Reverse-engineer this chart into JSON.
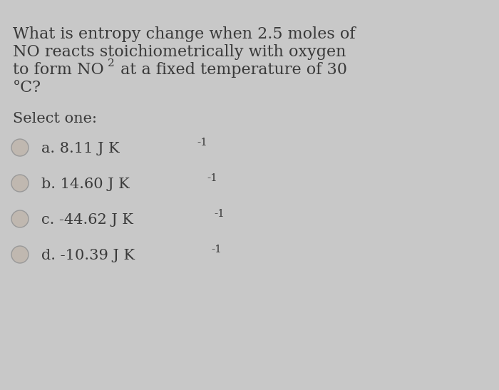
{
  "background_color": "#c8c8c8",
  "question_line1": "What is entropy change when 2.5 moles of",
  "question_line2": "NO reacts stoichiometrically with oxygen",
  "question_line3_pre": "to form NO",
  "question_line3_sub": "2",
  "question_line3_post": " at a fixed temperature of 30",
  "question_line4": "°C?",
  "select_label": "Select one:",
  "options": [
    {
      "label": "a. 8.11 J K",
      "superscript": "-1"
    },
    {
      "label": "b. 14.60 J K",
      "superscript": "-1"
    },
    {
      "label": "c. -44.62 J K",
      "superscript": "-1"
    },
    {
      "label": "d. -10.39 J K",
      "superscript": "-1"
    }
  ],
  "text_color": "#3a3a3a",
  "circle_edge_color": "#999999",
  "circle_fill_color": "#c0b8b0",
  "font_size_question": 16,
  "font_size_options": 15,
  "font_size_select": 15,
  "font_size_super": 11,
  "font_size_sub": 11
}
